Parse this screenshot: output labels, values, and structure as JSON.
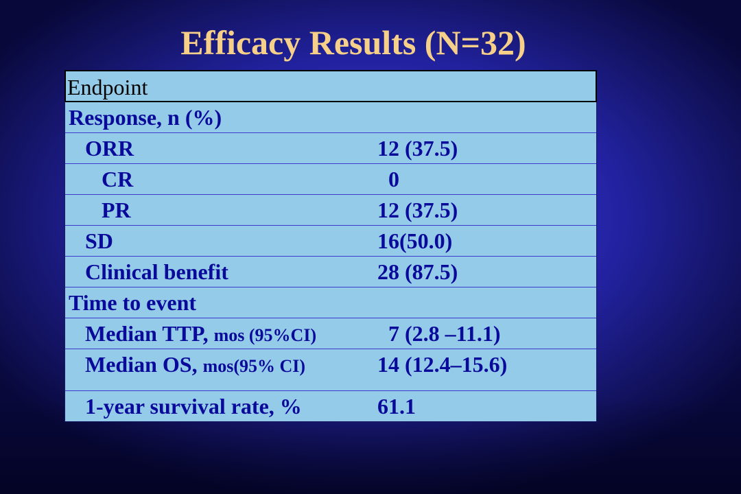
{
  "slide": {
    "title": "Efficacy Results (N=32)",
    "colors": {
      "background": "#2f2fc0",
      "title": "#f6d088",
      "table_fill": "#94cbe8",
      "table_text": "#0a0a9a"
    }
  },
  "table": {
    "header": "Endpoint",
    "rows": [
      {
        "label": "Response, n (%)",
        "value": ""
      },
      {
        "label": "ORR",
        "value": "12 (37.5)"
      },
      {
        "label": "CR",
        "value": "0"
      },
      {
        "label": "PR",
        "value": "12 (37.5)"
      },
      {
        "label": "SD",
        "value": "16(50.0)"
      },
      {
        "label": "Clinical benefit",
        "value": "28 (87.5)"
      },
      {
        "label": "Time to event",
        "value": ""
      },
      {
        "label": "Median TTP,",
        "label_small": "mos (95%CI)",
        "value": "7 (2.8 –11.1)"
      },
      {
        "label": "Median OS,",
        "label_small": "mos(95% CI)",
        "value": "14 (12.4–15.6)"
      },
      {
        "label": "1-year survival rate, %",
        "value": "61.1"
      }
    ]
  }
}
